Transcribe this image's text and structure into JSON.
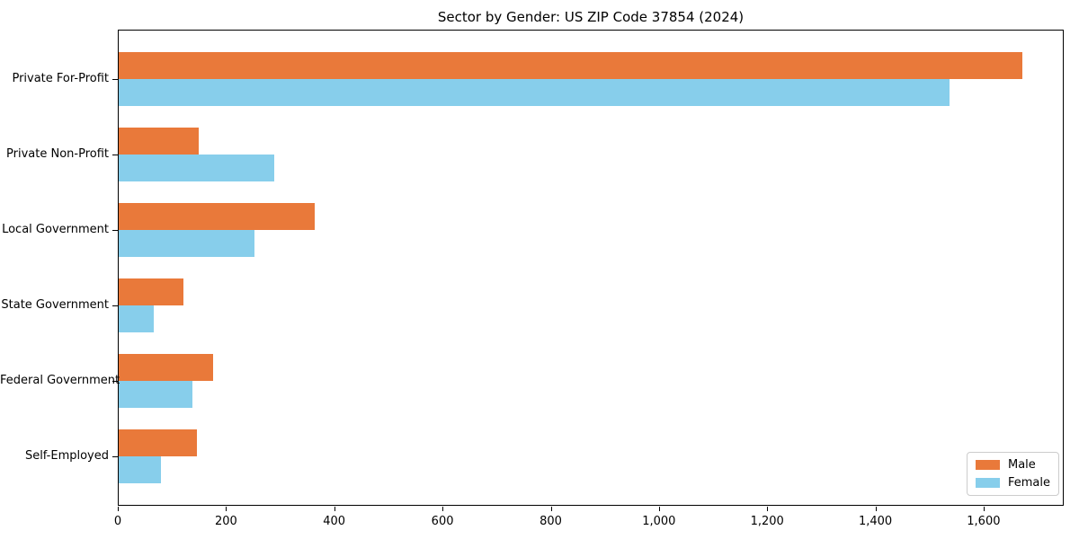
{
  "chart_data": {
    "type": "bar",
    "orientation": "horizontal",
    "title": "Sector by Gender: US ZIP Code 37854 (2024)",
    "categories": [
      "Private For-Profit",
      "Private Non-Profit",
      "Local Government",
      "State Government",
      "Federal Government",
      "Self-Employed"
    ],
    "series": [
      {
        "name": "Male",
        "color": "#e9793a",
        "values": [
          1670,
          148,
          362,
          120,
          175,
          145
        ]
      },
      {
        "name": "Female",
        "color": "#87ceeb",
        "values": [
          1535,
          288,
          250,
          65,
          136,
          78
        ]
      }
    ],
    "xlabel": "",
    "ylabel": "",
    "xlim": [
      0,
      1748
    ],
    "xticks": [
      0,
      200,
      400,
      600,
      800,
      1000,
      1200,
      1400,
      1600
    ],
    "xtick_labels": [
      "0",
      "200",
      "400",
      "600",
      "800",
      "1,000",
      "1,200",
      "1,400",
      "1,600"
    ],
    "grid": false,
    "legend": {
      "position": "lower right"
    }
  }
}
